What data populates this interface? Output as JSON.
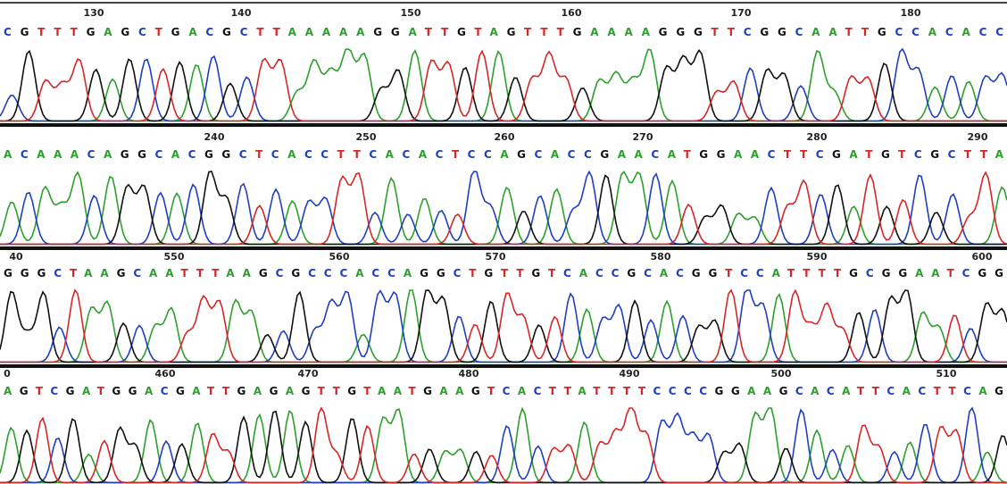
{
  "rows": [
    {
      "positions": [
        "130",
        "140",
        "150",
        "160",
        "170",
        "180"
      ],
      "bases": "CGTTTGAGCTGACGCTTAAAAAGGATTGTAGTTTGAAAAGGGTTCGGCAATTGCCACACC"
    },
    {
      "positions": [
        "240",
        "250",
        "260",
        "270",
        "280",
        "290"
      ],
      "bases": "ACAAACAGGCACGGCTCACCTTCACACTCCAGCACCGAACATGGAACTTCGATGTCGCTTA"
    },
    {
      "positions": [
        "40",
        "550",
        "560",
        "570",
        "580",
        "590",
        "600"
      ],
      "bases": "GGGCTAAGCAATTTAAGCGCCCACCAGGCTGTTGTCACCGCACGGTCCATTTTGCGGAATCGG"
    },
    {
      "positions": [
        "0",
        "460",
        "470",
        "480",
        "490",
        "500",
        "510"
      ],
      "bases": "AGTCGATGGACGATTGAGAGTTGTAATGAAGTCACTTATTTTCCCCGGAAGCACATTCACTTCAG"
    }
  ]
}
